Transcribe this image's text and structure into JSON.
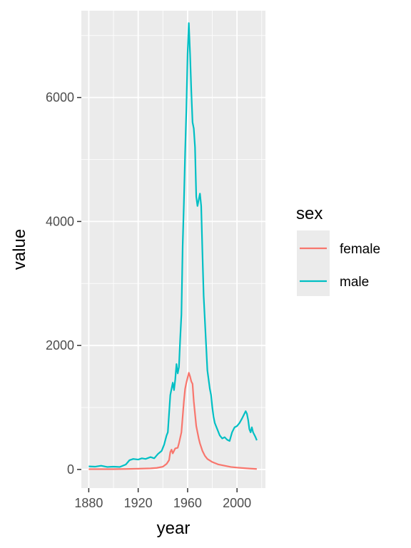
{
  "chart_data": {
    "type": "line",
    "xlabel": "year",
    "ylabel": "value",
    "xlim": [
      1874,
      2023
    ],
    "ylim": [
      -300,
      7400
    ],
    "x_ticks": [
      1880,
      1920,
      1960,
      2000
    ],
    "x_minor": [
      1900,
      1940,
      1980,
      2020
    ],
    "y_ticks": [
      0,
      2000,
      4000,
      6000
    ],
    "y_minor": [
      1000,
      3000,
      5000,
      7000
    ],
    "grid": true,
    "legend": {
      "title": "sex",
      "position": "right"
    },
    "series": [
      {
        "name": "female",
        "color": "#F8766D",
        "points": [
          [
            1880,
            5
          ],
          [
            1890,
            5
          ],
          [
            1900,
            5
          ],
          [
            1910,
            8
          ],
          [
            1920,
            12
          ],
          [
            1930,
            18
          ],
          [
            1935,
            25
          ],
          [
            1940,
            45
          ],
          [
            1943,
            90
          ],
          [
            1945,
            150
          ],
          [
            1946,
            280
          ],
          [
            1947,
            320
          ],
          [
            1948,
            260
          ],
          [
            1949,
            300
          ],
          [
            1950,
            340
          ],
          [
            1952,
            350
          ],
          [
            1953,
            420
          ],
          [
            1955,
            600
          ],
          [
            1956,
            850
          ],
          [
            1957,
            1100
          ],
          [
            1958,
            1300
          ],
          [
            1959,
            1400
          ],
          [
            1960,
            1480
          ],
          [
            1961,
            1560
          ],
          [
            1962,
            1500
          ],
          [
            1963,
            1420
          ],
          [
            1964,
            1380
          ],
          [
            1965,
            1100
          ],
          [
            1966,
            900
          ],
          [
            1967,
            700
          ],
          [
            1968,
            600
          ],
          [
            1969,
            500
          ],
          [
            1970,
            420
          ],
          [
            1972,
            300
          ],
          [
            1974,
            220
          ],
          [
            1976,
            170
          ],
          [
            1980,
            120
          ],
          [
            1985,
            80
          ],
          [
            1990,
            60
          ],
          [
            1995,
            40
          ],
          [
            2000,
            30
          ],
          [
            2005,
            22
          ],
          [
            2010,
            15
          ],
          [
            2016,
            8
          ]
        ]
      },
      {
        "name": "male",
        "color": "#00BFC4",
        "points": [
          [
            1880,
            50
          ],
          [
            1885,
            45
          ],
          [
            1890,
            60
          ],
          [
            1895,
            40
          ],
          [
            1900,
            45
          ],
          [
            1905,
            40
          ],
          [
            1910,
            80
          ],
          [
            1913,
            150
          ],
          [
            1916,
            170
          ],
          [
            1920,
            160
          ],
          [
            1923,
            180
          ],
          [
            1926,
            170
          ],
          [
            1930,
            200
          ],
          [
            1933,
            180
          ],
          [
            1936,
            250
          ],
          [
            1939,
            300
          ],
          [
            1941,
            400
          ],
          [
            1943,
            550
          ],
          [
            1944,
            600
          ],
          [
            1945,
            900
          ],
          [
            1946,
            1200
          ],
          [
            1947,
            1300
          ],
          [
            1948,
            1400
          ],
          [
            1949,
            1280
          ],
          [
            1950,
            1450
          ],
          [
            1951,
            1700
          ],
          [
            1952,
            1550
          ],
          [
            1953,
            1650
          ],
          [
            1954,
            2100
          ],
          [
            1955,
            2500
          ],
          [
            1956,
            3600
          ],
          [
            1957,
            4300
          ],
          [
            1958,
            5100
          ],
          [
            1959,
            5800
          ],
          [
            1960,
            6700
          ],
          [
            1961,
            7200
          ],
          [
            1962,
            6700
          ],
          [
            1963,
            6100
          ],
          [
            1964,
            5600
          ],
          [
            1965,
            5500
          ],
          [
            1966,
            5200
          ],
          [
            1967,
            4400
          ],
          [
            1968,
            4250
          ],
          [
            1969,
            4350
          ],
          [
            1970,
            4450
          ],
          [
            1971,
            4250
          ],
          [
            1972,
            3500
          ],
          [
            1973,
            2800
          ],
          [
            1974,
            2400
          ],
          [
            1975,
            2000
          ],
          [
            1976,
            1600
          ],
          [
            1977,
            1450
          ],
          [
            1978,
            1300
          ],
          [
            1979,
            1200
          ],
          [
            1980,
            1000
          ],
          [
            1981,
            850
          ],
          [
            1982,
            750
          ],
          [
            1984,
            650
          ],
          [
            1986,
            550
          ],
          [
            1988,
            500
          ],
          [
            1990,
            520
          ],
          [
            1992,
            480
          ],
          [
            1994,
            460
          ],
          [
            1996,
            600
          ],
          [
            1998,
            680
          ],
          [
            2000,
            700
          ],
          [
            2002,
            750
          ],
          [
            2004,
            820
          ],
          [
            2006,
            900
          ],
          [
            2007,
            940
          ],
          [
            2008,
            900
          ],
          [
            2009,
            800
          ],
          [
            2010,
            650
          ],
          [
            2011,
            600
          ],
          [
            2012,
            680
          ],
          [
            2013,
            600
          ],
          [
            2014,
            560
          ],
          [
            2015,
            520
          ],
          [
            2016,
            470
          ]
        ]
      }
    ]
  }
}
